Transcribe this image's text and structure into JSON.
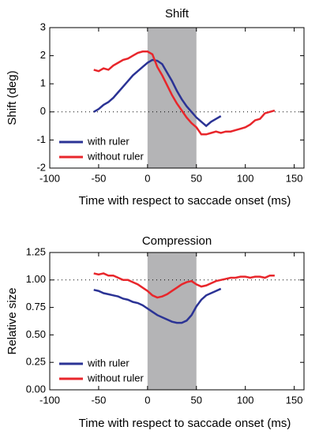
{
  "chart_data": [
    {
      "type": "line",
      "title": "Shift",
      "xlabel": "Time with respect to saccade onset (ms)",
      "ylabel": "Shift (deg)",
      "xlim": [
        -100,
        160
      ],
      "xticks": [
        -100,
        -50,
        0,
        50,
        100,
        150
      ],
      "ylim": [
        -2,
        3
      ],
      "yticks": [
        -2,
        -1,
        0,
        1,
        2,
        3
      ],
      "shaded_region": [
        0,
        50
      ],
      "shade_color": "#b4b4b6",
      "reference_line": 0,
      "legend": "lower left",
      "series": [
        {
          "name": "with ruler",
          "color": "#2b3395",
          "x": [
            -55,
            -50,
            -45,
            -40,
            -35,
            -30,
            -25,
            -20,
            -15,
            -10,
            -5,
            0,
            5,
            10,
            15,
            20,
            25,
            30,
            35,
            40,
            45,
            50,
            55,
            60,
            65,
            70,
            75
          ],
          "values": [
            0,
            0.1,
            0.25,
            0.35,
            0.5,
            0.7,
            0.9,
            1.1,
            1.3,
            1.45,
            1.6,
            1.75,
            1.85,
            1.82,
            1.7,
            1.4,
            1.1,
            0.75,
            0.45,
            0.2,
            0.0,
            -0.2,
            -0.35,
            -0.5,
            -0.35,
            -0.25,
            -0.15
          ]
        },
        {
          "name": "without ruler",
          "color": "#e8262b",
          "x": [
            -55,
            -50,
            -45,
            -40,
            -35,
            -30,
            -25,
            -20,
            -15,
            -10,
            -5,
            0,
            5,
            10,
            15,
            20,
            25,
            30,
            35,
            40,
            45,
            50,
            55,
            60,
            65,
            70,
            75,
            80,
            85,
            90,
            95,
            100,
            105,
            110,
            115,
            120,
            125,
            130
          ],
          "values": [
            1.5,
            1.45,
            1.55,
            1.5,
            1.65,
            1.75,
            1.85,
            1.9,
            2.0,
            2.1,
            2.15,
            2.15,
            2.05,
            1.6,
            1.3,
            0.95,
            0.6,
            0.3,
            0.05,
            -0.2,
            -0.4,
            -0.55,
            -0.8,
            -0.8,
            -0.75,
            -0.7,
            -0.75,
            -0.7,
            -0.7,
            -0.65,
            -0.6,
            -0.55,
            -0.45,
            -0.3,
            -0.25,
            -0.05,
            0.0,
            0.05
          ]
        }
      ]
    },
    {
      "type": "line",
      "title": "Compression",
      "xlabel": "Time with respect to saccade onset (ms)",
      "ylabel": "Relative size",
      "xlim": [
        -100,
        160
      ],
      "xticks": [
        -100,
        -50,
        0,
        50,
        100,
        150
      ],
      "ylim": [
        0,
        1.25
      ],
      "yticks": [
        {
          "value": 0,
          "label": "0.00"
        },
        {
          "value": 0.25,
          "label": "0.25"
        },
        {
          "value": 0.5,
          "label": "0.50"
        },
        {
          "value": 0.75,
          "label": "0.75"
        },
        {
          "value": 1,
          "label": "1.00"
        },
        {
          "value": 1.25,
          "label": "1.25"
        }
      ],
      "shaded_region": [
        0,
        50
      ],
      "shade_color": "#b4b4b6",
      "reference_line": 1,
      "legend": "lower left",
      "series": [
        {
          "name": "with ruler",
          "color": "#2b3395",
          "x": [
            -55,
            -50,
            -45,
            -40,
            -35,
            -30,
            -25,
            -20,
            -15,
            -10,
            -5,
            0,
            5,
            10,
            15,
            20,
            25,
            30,
            35,
            40,
            45,
            50,
            55,
            60,
            65,
            70,
            75
          ],
          "values": [
            0.91,
            0.9,
            0.88,
            0.87,
            0.86,
            0.85,
            0.83,
            0.82,
            0.8,
            0.79,
            0.77,
            0.74,
            0.71,
            0.68,
            0.66,
            0.64,
            0.62,
            0.61,
            0.61,
            0.63,
            0.68,
            0.76,
            0.82,
            0.86,
            0.88,
            0.9,
            0.92
          ]
        },
        {
          "name": "without ruler",
          "color": "#e8262b",
          "x": [
            -55,
            -50,
            -45,
            -40,
            -35,
            -30,
            -25,
            -20,
            -15,
            -10,
            -5,
            0,
            5,
            10,
            15,
            20,
            25,
            30,
            35,
            40,
            45,
            50,
            55,
            60,
            65,
            70,
            75,
            80,
            85,
            90,
            95,
            100,
            105,
            110,
            115,
            120,
            125,
            130
          ],
          "values": [
            1.06,
            1.05,
            1.06,
            1.04,
            1.04,
            1.02,
            1.0,
            1.0,
            0.98,
            0.96,
            0.93,
            0.9,
            0.86,
            0.84,
            0.85,
            0.87,
            0.9,
            0.93,
            0.96,
            0.98,
            0.99,
            0.96,
            0.94,
            0.95,
            0.97,
            0.99,
            1.0,
            1.01,
            1.02,
            1.02,
            1.03,
            1.03,
            1.02,
            1.03,
            1.03,
            1.02,
            1.04,
            1.04
          ]
        }
      ]
    }
  ]
}
